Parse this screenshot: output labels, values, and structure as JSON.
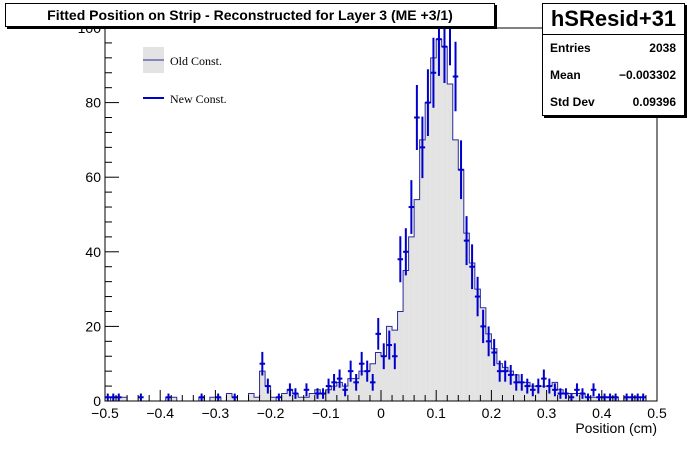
{
  "chart_data": {
    "type": "histogram",
    "title": "Fitted Position on Strip - Reconstructed for Layer 3  (ME +3/1)",
    "xlabel": "Position (cm)",
    "ylabel": "",
    "xlim": [
      -0.5,
      0.5
    ],
    "ylim": [
      0,
      100
    ],
    "x_ticks": [
      "-0.5",
      "-0.4",
      "-0.3",
      "-0.2",
      "-0.1",
      "0",
      "0.1",
      "0.2",
      "0.3",
      "0.4",
      "0.5"
    ],
    "y_ticks": [
      "0",
      "20",
      "40",
      "60",
      "80",
      "100"
    ],
    "grid": false,
    "legend_position": "top-left",
    "bin_width": 0.01,
    "bin_start": -0.5,
    "series": [
      {
        "name": "Old Const.",
        "style": "filled-histogram",
        "fill": "#e3e3e3",
        "line": "#2b2b9b",
        "values": [
          0,
          1,
          1,
          1,
          0,
          0,
          0,
          0,
          0,
          0,
          0,
          1,
          1,
          0,
          0,
          0,
          0,
          1,
          0,
          1,
          1,
          0,
          2,
          1,
          0,
          0,
          2,
          1,
          8,
          4,
          1,
          0,
          2,
          3,
          2,
          1,
          1,
          2,
          3,
          2,
          3,
          4,
          5,
          4,
          6,
          6,
          8,
          8,
          10,
          13,
          12,
          20,
          19,
          24,
          35,
          44,
          54,
          70,
          80,
          92,
          97,
          95,
          85,
          70,
          62,
          45,
          37,
          30,
          25,
          18,
          14,
          10,
          9,
          8,
          7,
          5,
          5,
          4,
          4,
          4,
          4,
          5,
          3,
          2,
          2,
          2,
          2,
          1,
          1,
          1,
          1,
          1,
          1,
          0,
          1,
          1,
          1,
          0,
          0,
          0
        ]
      },
      {
        "name": "New Const.",
        "style": "points-with-errors",
        "color": "#0000cc",
        "values": [
          1,
          1,
          1,
          0,
          0,
          0,
          1,
          0,
          0,
          0,
          0,
          1,
          0,
          0,
          0,
          0,
          0,
          1,
          0,
          0,
          1,
          0,
          0,
          1,
          0,
          0,
          0,
          0,
          10,
          4,
          0,
          1,
          0,
          3,
          2,
          0,
          3,
          0,
          2,
          2,
          4,
          5,
          6,
          3,
          8,
          5,
          10,
          8,
          5,
          18,
          12,
          15,
          12,
          38,
          40,
          52,
          76,
          68,
          80,
          88,
          97,
          95,
          100,
          87,
          62,
          43,
          36,
          28,
          20,
          16,
          13,
          8,
          8,
          7,
          5,
          5,
          4,
          3,
          4,
          6,
          4,
          3,
          2,
          2,
          1,
          3,
          2,
          1,
          3,
          1,
          1,
          1,
          1,
          0,
          1,
          1,
          1,
          1,
          0,
          0
        ]
      }
    ]
  },
  "stats": {
    "name": "hSResid+31",
    "entries_label": "Entries",
    "entries": "2038",
    "mean_label": "Mean",
    "mean": "−0.003302",
    "stddev_label": "Std Dev",
    "stddev": "0.09396"
  },
  "colors": {
    "frame": "#000000",
    "old_fill": "#e3e3e3",
    "old_line": "#2b2b9b",
    "new_marker": "#0000cc"
  }
}
